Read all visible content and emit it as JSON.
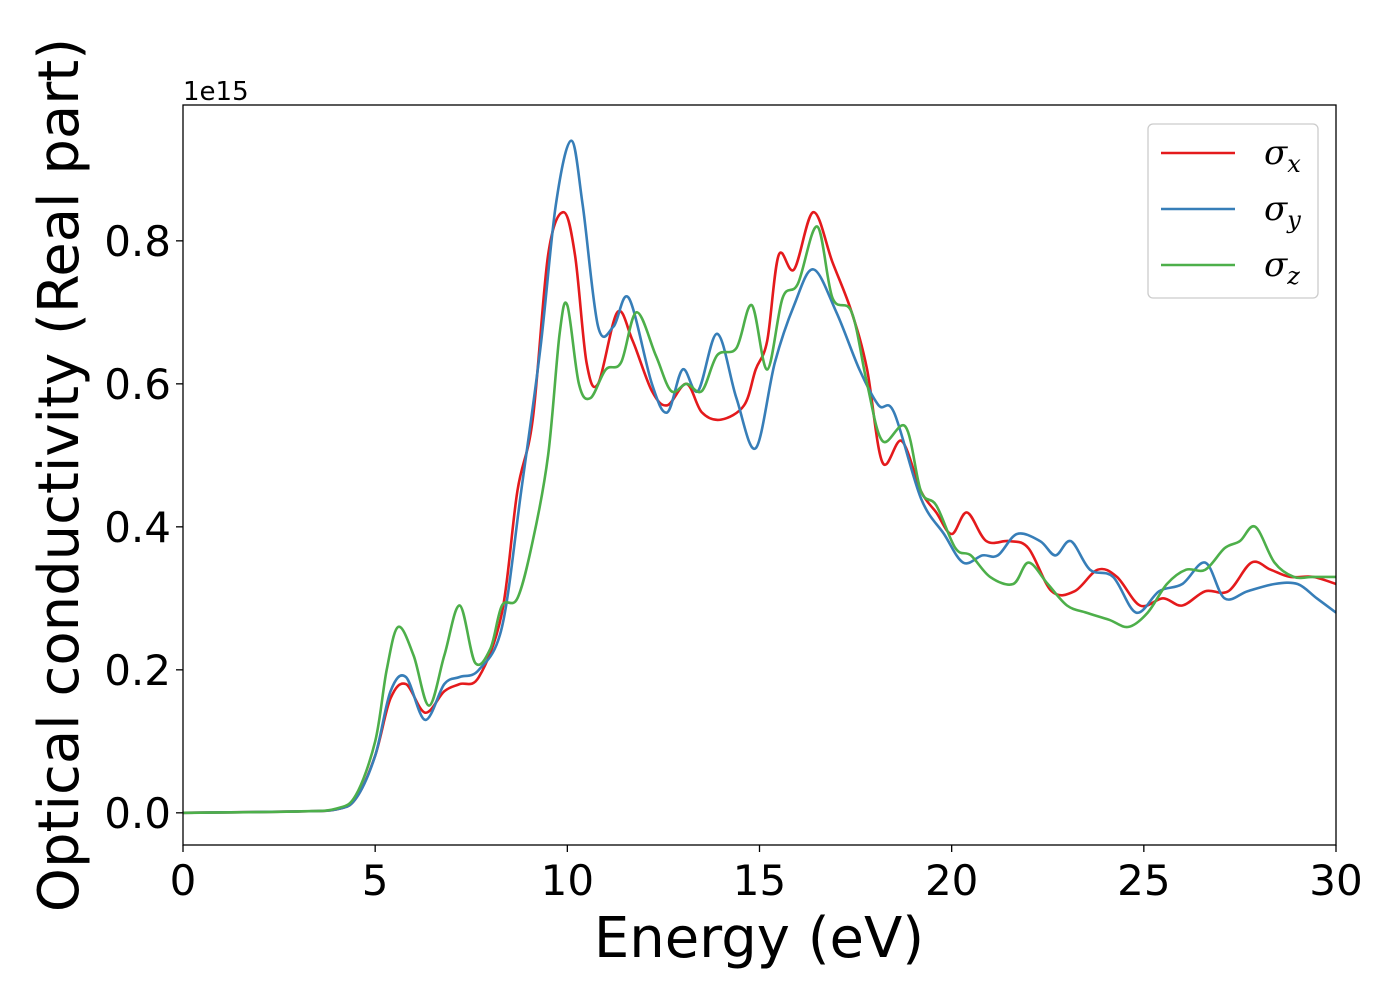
{
  "chart_data": {
    "type": "line",
    "title": "",
    "xlabel": "Energy (eV)",
    "ylabel": "Optical conductivity (Real part)",
    "y_offset_label": "1e15",
    "xlim": [
      0,
      30
    ],
    "ylim": [
      -0.045,
      0.99
    ],
    "xticks": [
      0,
      5,
      10,
      15,
      20,
      25,
      30
    ],
    "xtick_labels": [
      "0",
      "5",
      "10",
      "15",
      "20",
      "25",
      "30"
    ],
    "yticks": [
      0.0,
      0.2,
      0.4,
      0.6,
      0.8
    ],
    "ytick_labels": [
      "0.0",
      "0.2",
      "0.4",
      "0.6",
      "0.8"
    ],
    "grid": false,
    "legend_position": "top-right",
    "series": [
      {
        "name": "σ",
        "subscript": "x",
        "color": "#e41a1c",
        "points": [
          [
            0,
            0
          ],
          [
            3,
            0.002
          ],
          [
            4,
            0.005
          ],
          [
            4.5,
            0.02
          ],
          [
            5,
            0.08
          ],
          [
            5.4,
            0.16
          ],
          [
            5.8,
            0.18
          ],
          [
            6.3,
            0.14
          ],
          [
            6.8,
            0.17
          ],
          [
            7.2,
            0.18
          ],
          [
            7.7,
            0.19
          ],
          [
            8.3,
            0.28
          ],
          [
            8.7,
            0.45
          ],
          [
            9.1,
            0.55
          ],
          [
            9.5,
            0.78
          ],
          [
            9.9,
            0.84
          ],
          [
            10.2,
            0.78
          ],
          [
            10.5,
            0.63
          ],
          [
            10.8,
            0.6
          ],
          [
            11.3,
            0.7
          ],
          [
            11.7,
            0.66
          ],
          [
            12.2,
            0.59
          ],
          [
            12.6,
            0.57
          ],
          [
            13.1,
            0.6
          ],
          [
            13.5,
            0.56
          ],
          [
            14,
            0.55
          ],
          [
            14.6,
            0.57
          ],
          [
            14.9,
            0.62
          ],
          [
            15.2,
            0.66
          ],
          [
            15.5,
            0.78
          ],
          [
            15.9,
            0.76
          ],
          [
            16.4,
            0.84
          ],
          [
            16.9,
            0.77
          ],
          [
            17.4,
            0.7
          ],
          [
            17.8,
            0.62
          ],
          [
            18.2,
            0.49
          ],
          [
            18.7,
            0.52
          ],
          [
            19.2,
            0.45
          ],
          [
            19.6,
            0.42
          ],
          [
            20,
            0.39
          ],
          [
            20.4,
            0.42
          ],
          [
            20.9,
            0.38
          ],
          [
            21.5,
            0.38
          ],
          [
            22,
            0.37
          ],
          [
            22.6,
            0.31
          ],
          [
            23.2,
            0.31
          ],
          [
            23.8,
            0.34
          ],
          [
            24.3,
            0.33
          ],
          [
            24.9,
            0.29
          ],
          [
            25.5,
            0.3
          ],
          [
            26,
            0.29
          ],
          [
            26.6,
            0.31
          ],
          [
            27.2,
            0.31
          ],
          [
            27.8,
            0.35
          ],
          [
            28.3,
            0.34
          ],
          [
            28.8,
            0.33
          ],
          [
            29.4,
            0.33
          ],
          [
            30,
            0.32
          ]
        ]
      },
      {
        "name": "σ",
        "subscript": "y",
        "color": "#377eb8",
        "points": [
          [
            0,
            0
          ],
          [
            3,
            0.002
          ],
          [
            4,
            0.005
          ],
          [
            4.5,
            0.02
          ],
          [
            5,
            0.08
          ],
          [
            5.4,
            0.17
          ],
          [
            5.8,
            0.19
          ],
          [
            6.3,
            0.13
          ],
          [
            6.8,
            0.18
          ],
          [
            7.2,
            0.19
          ],
          [
            7.7,
            0.2
          ],
          [
            8.3,
            0.26
          ],
          [
            8.8,
            0.45
          ],
          [
            9.3,
            0.65
          ],
          [
            9.7,
            0.85
          ],
          [
            10.1,
            0.94
          ],
          [
            10.4,
            0.85
          ],
          [
            10.8,
            0.68
          ],
          [
            11.2,
            0.68
          ],
          [
            11.6,
            0.72
          ],
          [
            12.2,
            0.6
          ],
          [
            12.6,
            0.56
          ],
          [
            13,
            0.62
          ],
          [
            13.4,
            0.59
          ],
          [
            13.9,
            0.67
          ],
          [
            14.4,
            0.58
          ],
          [
            14.9,
            0.51
          ],
          [
            15.4,
            0.63
          ],
          [
            15.9,
            0.71
          ],
          [
            16.4,
            0.76
          ],
          [
            17,
            0.7
          ],
          [
            17.6,
            0.62
          ],
          [
            18.1,
            0.57
          ],
          [
            18.5,
            0.56
          ],
          [
            19.2,
            0.44
          ],
          [
            19.8,
            0.39
          ],
          [
            20.3,
            0.35
          ],
          [
            20.8,
            0.36
          ],
          [
            21.2,
            0.36
          ],
          [
            21.7,
            0.39
          ],
          [
            22.3,
            0.38
          ],
          [
            22.7,
            0.36
          ],
          [
            23.1,
            0.38
          ],
          [
            23.6,
            0.34
          ],
          [
            24.2,
            0.33
          ],
          [
            24.8,
            0.28
          ],
          [
            25.4,
            0.31
          ],
          [
            26,
            0.32
          ],
          [
            26.6,
            0.35
          ],
          [
            27.1,
            0.3
          ],
          [
            27.7,
            0.31
          ],
          [
            28.4,
            0.32
          ],
          [
            29,
            0.32
          ],
          [
            29.5,
            0.3
          ],
          [
            30,
            0.28
          ]
        ]
      },
      {
        "name": "σ",
        "subscript": "z",
        "color": "#4daf4a",
        "points": [
          [
            0,
            0
          ],
          [
            3,
            0.002
          ],
          [
            4,
            0.006
          ],
          [
            4.5,
            0.025
          ],
          [
            5,
            0.1
          ],
          [
            5.3,
            0.2
          ],
          [
            5.6,
            0.26
          ],
          [
            6,
            0.22
          ],
          [
            6.4,
            0.15
          ],
          [
            6.8,
            0.22
          ],
          [
            7.2,
            0.29
          ],
          [
            7.6,
            0.21
          ],
          [
            8,
            0.23
          ],
          [
            8.3,
            0.29
          ],
          [
            8.7,
            0.3
          ],
          [
            9.1,
            0.38
          ],
          [
            9.5,
            0.5
          ],
          [
            9.8,
            0.67
          ],
          [
            10,
            0.71
          ],
          [
            10.3,
            0.6
          ],
          [
            10.6,
            0.58
          ],
          [
            11,
            0.62
          ],
          [
            11.4,
            0.63
          ],
          [
            11.8,
            0.7
          ],
          [
            12.3,
            0.64
          ],
          [
            12.7,
            0.59
          ],
          [
            13.1,
            0.6
          ],
          [
            13.5,
            0.59
          ],
          [
            13.9,
            0.64
          ],
          [
            14.4,
            0.65
          ],
          [
            14.8,
            0.71
          ],
          [
            15.2,
            0.62
          ],
          [
            15.6,
            0.72
          ],
          [
            16,
            0.74
          ],
          [
            16.5,
            0.82
          ],
          [
            16.9,
            0.72
          ],
          [
            17.4,
            0.7
          ],
          [
            17.8,
            0.6
          ],
          [
            18.2,
            0.52
          ],
          [
            18.8,
            0.54
          ],
          [
            19.2,
            0.45
          ],
          [
            19.6,
            0.43
          ],
          [
            20.1,
            0.37
          ],
          [
            20.5,
            0.36
          ],
          [
            21,
            0.33
          ],
          [
            21.6,
            0.32
          ],
          [
            22,
            0.35
          ],
          [
            22.5,
            0.32
          ],
          [
            23,
            0.29
          ],
          [
            23.5,
            0.28
          ],
          [
            24.1,
            0.27
          ],
          [
            24.6,
            0.26
          ],
          [
            25.1,
            0.28
          ],
          [
            25.6,
            0.32
          ],
          [
            26.1,
            0.34
          ],
          [
            26.6,
            0.34
          ],
          [
            27.1,
            0.37
          ],
          [
            27.5,
            0.38
          ],
          [
            27.9,
            0.4
          ],
          [
            28.4,
            0.35
          ],
          [
            28.9,
            0.33
          ],
          [
            29.4,
            0.33
          ],
          [
            30,
            0.33
          ]
        ]
      }
    ]
  }
}
